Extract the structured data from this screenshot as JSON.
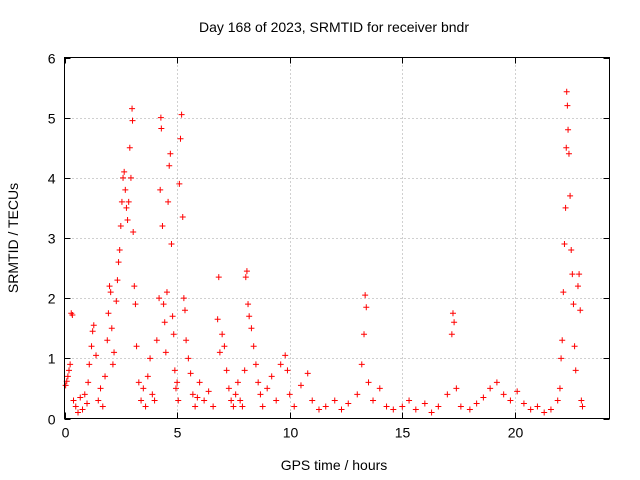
{
  "chart_data": {
    "type": "scatter",
    "title": "Day 168 of 2023, SRMTID for receiver bndr",
    "xlabel": "GPS time / hours",
    "ylabel": "SRMTID / TECUs",
    "xlim": [
      0,
      24.2
    ],
    "ylim": [
      0,
      6
    ],
    "xticks": [
      0,
      5,
      10,
      15,
      20
    ],
    "yticks": [
      0,
      1,
      2,
      3,
      4,
      5,
      6
    ],
    "grid": true,
    "marker": "plus",
    "color": "#ff0000",
    "series": [
      {
        "name": "SRMTID",
        "points": [
          [
            0.05,
            0.55
          ],
          [
            0.1,
            0.62
          ],
          [
            0.15,
            0.7
          ],
          [
            0.2,
            0.8
          ],
          [
            0.25,
            0.9
          ],
          [
            0.3,
            1.75
          ],
          [
            0.35,
            1.72
          ],
          [
            0.4,
            0.3
          ],
          [
            0.5,
            0.2
          ],
          [
            0.6,
            0.1
          ],
          [
            0.7,
            0.35
          ],
          [
            0.8,
            0.15
          ],
          [
            0.9,
            0.4
          ],
          [
            1.0,
            0.25
          ],
          [
            1.05,
            0.6
          ],
          [
            1.1,
            0.9
          ],
          [
            1.2,
            1.2
          ],
          [
            1.25,
            1.45
          ],
          [
            1.3,
            1.55
          ],
          [
            1.4,
            1.05
          ],
          [
            1.5,
            0.3
          ],
          [
            1.6,
            0.5
          ],
          [
            1.7,
            0.2
          ],
          [
            1.8,
            0.7
          ],
          [
            1.9,
            1.3
          ],
          [
            1.95,
            1.75
          ],
          [
            2.0,
            2.2
          ],
          [
            2.05,
            2.1
          ],
          [
            2.1,
            1.5
          ],
          [
            2.15,
            0.9
          ],
          [
            2.2,
            1.1
          ],
          [
            2.3,
            1.95
          ],
          [
            2.35,
            2.3
          ],
          [
            2.4,
            2.6
          ],
          [
            2.45,
            2.8
          ],
          [
            2.5,
            3.2
          ],
          [
            2.55,
            3.6
          ],
          [
            2.6,
            4.0
          ],
          [
            2.65,
            4.1
          ],
          [
            2.7,
            3.8
          ],
          [
            2.75,
            3.5
          ],
          [
            2.8,
            3.3
          ],
          [
            2.85,
            3.6
          ],
          [
            2.9,
            4.5
          ],
          [
            2.95,
            4.0
          ],
          [
            3.0,
            5.15
          ],
          [
            3.02,
            4.95
          ],
          [
            3.05,
            3.1
          ],
          [
            3.1,
            2.2
          ],
          [
            3.15,
            1.9
          ],
          [
            3.2,
            1.2
          ],
          [
            3.3,
            0.6
          ],
          [
            3.4,
            0.3
          ],
          [
            3.5,
            0.5
          ],
          [
            3.6,
            0.2
          ],
          [
            3.7,
            0.7
          ],
          [
            3.8,
            1.0
          ],
          [
            3.9,
            0.4
          ],
          [
            4.0,
            0.3
          ],
          [
            4.1,
            1.3
          ],
          [
            4.2,
            2.0
          ],
          [
            4.25,
            3.8
          ],
          [
            4.28,
            5.0
          ],
          [
            4.3,
            4.82
          ],
          [
            4.35,
            3.2
          ],
          [
            4.4,
            1.9
          ],
          [
            4.45,
            1.6
          ],
          [
            4.5,
            1.1
          ],
          [
            4.55,
            2.1
          ],
          [
            4.6,
            3.6
          ],
          [
            4.65,
            4.2
          ],
          [
            4.7,
            4.4
          ],
          [
            4.75,
            2.9
          ],
          [
            4.8,
            1.7
          ],
          [
            4.85,
            1.4
          ],
          [
            4.9,
            0.8
          ],
          [
            4.95,
            0.5
          ],
          [
            5.0,
            0.6
          ],
          [
            5.05,
            0.3
          ],
          [
            5.1,
            3.9
          ],
          [
            5.15,
            4.65
          ],
          [
            5.2,
            5.05
          ],
          [
            5.25,
            3.35
          ],
          [
            5.3,
            2.0
          ],
          [
            5.35,
            1.8
          ],
          [
            5.4,
            1.3
          ],
          [
            5.5,
            1.0
          ],
          [
            5.6,
            0.75
          ],
          [
            5.7,
            0.4
          ],
          [
            5.8,
            0.2
          ],
          [
            5.9,
            0.35
          ],
          [
            6.0,
            0.6
          ],
          [
            6.2,
            0.3
          ],
          [
            6.4,
            0.45
          ],
          [
            6.6,
            0.2
          ],
          [
            6.8,
            1.65
          ],
          [
            6.85,
            2.35
          ],
          [
            6.9,
            1.1
          ],
          [
            7.0,
            1.4
          ],
          [
            7.1,
            1.2
          ],
          [
            7.2,
            0.8
          ],
          [
            7.3,
            0.5
          ],
          [
            7.4,
            0.3
          ],
          [
            7.5,
            0.2
          ],
          [
            7.6,
            0.4
          ],
          [
            7.7,
            0.6
          ],
          [
            7.8,
            0.3
          ],
          [
            7.9,
            0.2
          ],
          [
            8.0,
            0.8
          ],
          [
            8.05,
            2.35
          ],
          [
            8.1,
            2.45
          ],
          [
            8.15,
            1.9
          ],
          [
            8.2,
            1.7
          ],
          [
            8.3,
            1.5
          ],
          [
            8.4,
            1.2
          ],
          [
            8.5,
            0.9
          ],
          [
            8.6,
            0.6
          ],
          [
            8.7,
            0.4
          ],
          [
            8.8,
            0.2
          ],
          [
            9.0,
            0.5
          ],
          [
            9.2,
            0.7
          ],
          [
            9.4,
            0.3
          ],
          [
            9.6,
            0.9
          ],
          [
            9.8,
            1.05
          ],
          [
            9.9,
            0.8
          ],
          [
            10.0,
            0.4
          ],
          [
            10.2,
            0.2
          ],
          [
            10.5,
            0.55
          ],
          [
            10.8,
            0.75
          ],
          [
            11.0,
            0.3
          ],
          [
            11.3,
            0.15
          ],
          [
            11.6,
            0.2
          ],
          [
            12.0,
            0.3
          ],
          [
            12.3,
            0.15
          ],
          [
            12.6,
            0.25
          ],
          [
            13.0,
            0.4
          ],
          [
            13.2,
            0.9
          ],
          [
            13.3,
            1.4
          ],
          [
            13.35,
            2.05
          ],
          [
            13.4,
            1.85
          ],
          [
            13.5,
            0.6
          ],
          [
            13.7,
            0.3
          ],
          [
            14.0,
            0.5
          ],
          [
            14.3,
            0.2
          ],
          [
            14.6,
            0.15
          ],
          [
            15.0,
            0.2
          ],
          [
            15.3,
            0.3
          ],
          [
            15.6,
            0.15
          ],
          [
            16.0,
            0.25
          ],
          [
            16.3,
            0.1
          ],
          [
            16.6,
            0.2
          ],
          [
            17.0,
            0.4
          ],
          [
            17.2,
            1.4
          ],
          [
            17.25,
            1.75
          ],
          [
            17.3,
            1.6
          ],
          [
            17.4,
            0.5
          ],
          [
            17.6,
            0.2
          ],
          [
            18.0,
            0.15
          ],
          [
            18.3,
            0.25
          ],
          [
            18.6,
            0.35
          ],
          [
            18.9,
            0.5
          ],
          [
            19.2,
            0.6
          ],
          [
            19.5,
            0.4
          ],
          [
            19.8,
            0.3
          ],
          [
            20.1,
            0.45
          ],
          [
            20.4,
            0.25
          ],
          [
            20.7,
            0.15
          ],
          [
            21.0,
            0.2
          ],
          [
            21.3,
            0.1
          ],
          [
            21.6,
            0.15
          ],
          [
            21.9,
            0.3
          ],
          [
            22.0,
            0.5
          ],
          [
            22.05,
            1.0
          ],
          [
            22.1,
            1.3
          ],
          [
            22.15,
            2.1
          ],
          [
            22.2,
            2.9
          ],
          [
            22.25,
            3.5
          ],
          [
            22.28,
            4.5
          ],
          [
            22.3,
            5.43
          ],
          [
            22.33,
            5.2
          ],
          [
            22.36,
            4.8
          ],
          [
            22.4,
            4.4
          ],
          [
            22.45,
            3.7
          ],
          [
            22.5,
            2.8
          ],
          [
            22.55,
            2.4
          ],
          [
            22.6,
            1.9
          ],
          [
            22.65,
            1.2
          ],
          [
            22.7,
            0.8
          ],
          [
            22.8,
            2.2
          ],
          [
            22.85,
            2.4
          ],
          [
            22.9,
            1.8
          ],
          [
            22.95,
            0.3
          ],
          [
            23.0,
            0.2
          ]
        ]
      }
    ]
  }
}
